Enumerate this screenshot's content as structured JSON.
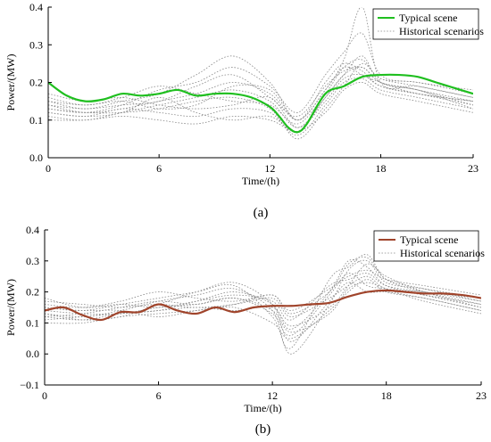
{
  "chart_data": [
    {
      "type": "line",
      "caption": "(a)",
      "xlabel": "Time/(h)",
      "ylabel": "Power/(MW)",
      "xlim": [
        0,
        23
      ],
      "ylim": [
        0,
        0.4
      ],
      "xticks": [
        0,
        6,
        12,
        18,
        23
      ],
      "yticks": [
        0.0,
        0.1,
        0.2,
        0.3,
        0.4
      ],
      "ytick_labels": [
        "0.0",
        "0.1",
        "0.2",
        "0.3",
        "0.4"
      ],
      "legend_position": "top-right",
      "typical_color": "#1fbf1f",
      "historical_color": "#8a8a8a",
      "series": [
        {
          "name": "Typical scene",
          "style": "solid",
          "x": [
            0,
            1,
            2,
            3,
            4,
            5,
            6,
            7,
            8,
            9,
            10,
            11,
            12,
            12.5,
            13,
            13.5,
            14,
            15,
            16,
            17,
            18,
            19,
            20,
            21,
            22,
            23
          ],
          "values": [
            0.2,
            0.165,
            0.15,
            0.155,
            0.17,
            0.165,
            0.17,
            0.18,
            0.165,
            0.17,
            0.17,
            0.16,
            0.135,
            0.11,
            0.08,
            0.068,
            0.09,
            0.17,
            0.19,
            0.215,
            0.22,
            0.22,
            0.215,
            0.2,
            0.185,
            0.17
          ]
        },
        {
          "name": "Historical scenarios",
          "style": "dotted",
          "x": [
            0,
            2,
            4,
            6,
            8,
            10,
            12,
            13.5,
            15,
            16,
            17,
            18,
            20,
            23
          ],
          "lines": [
            [
              0.14,
              0.12,
              0.13,
              0.15,
              0.17,
              0.2,
              0.17,
              0.1,
              0.18,
              0.26,
              0.4,
              0.2,
              0.19,
              0.16
            ],
            [
              0.13,
              0.12,
              0.14,
              0.18,
              0.2,
              0.24,
              0.19,
              0.12,
              0.22,
              0.28,
              0.33,
              0.22,
              0.2,
              0.18
            ],
            [
              0.11,
              0.1,
              0.12,
              0.14,
              0.16,
              0.18,
              0.15,
              0.08,
              0.16,
              0.22,
              0.27,
              0.2,
              0.18,
              0.14
            ],
            [
              0.15,
              0.13,
              0.15,
              0.17,
              0.22,
              0.27,
              0.2,
              0.1,
              0.2,
              0.25,
              0.23,
              0.19,
              0.17,
              0.15
            ],
            [
              0.12,
              0.11,
              0.13,
              0.12,
              0.11,
              0.13,
              0.12,
              0.06,
              0.14,
              0.2,
              0.21,
              0.18,
              0.16,
              0.13
            ],
            [
              0.16,
              0.14,
              0.16,
              0.19,
              0.17,
              0.15,
              0.14,
              0.09,
              0.17,
              0.24,
              0.26,
              0.21,
              0.2,
              0.17
            ],
            [
              0.1,
              0.1,
              0.11,
              0.1,
              0.09,
              0.11,
              0.1,
              0.07,
              0.12,
              0.18,
              0.2,
              0.17,
              0.15,
              0.12
            ],
            [
              0.14,
              0.13,
              0.14,
              0.15,
              0.19,
              0.22,
              0.16,
              0.11,
              0.19,
              0.23,
              0.24,
              0.2,
              0.18,
              0.15
            ],
            [
              0.17,
              0.15,
              0.16,
              0.14,
              0.13,
              0.14,
              0.16,
              0.08,
              0.15,
              0.21,
              0.22,
              0.19,
              0.17,
              0.14
            ],
            [
              0.13,
              0.12,
              0.12,
              0.13,
              0.15,
              0.16,
              0.13,
              0.05,
              0.13,
              0.19,
              0.25,
              0.21,
              0.19,
              0.16
            ],
            [
              0.12,
              0.11,
              0.12,
              0.16,
              0.12,
              0.1,
              0.11,
              0.07,
              0.16,
              0.22,
              0.24,
              0.2,
              0.18,
              0.13
            ],
            [
              0.15,
              0.14,
              0.15,
              0.13,
              0.14,
              0.19,
              0.18,
              0.1,
              0.18,
              0.24,
              0.22,
              0.2,
              0.17,
              0.15
            ]
          ]
        }
      ]
    },
    {
      "type": "line",
      "caption": "(b)",
      "xlabel": "Time/(h)",
      "ylabel": "Power/(MW)",
      "xlim": [
        0,
        23
      ],
      "ylim": [
        -0.1,
        0.4
      ],
      "xticks": [
        0,
        6,
        12,
        18,
        23
      ],
      "yticks": [
        -0.1,
        0.0,
        0.1,
        0.2,
        0.3,
        0.4
      ],
      "ytick_labels": [
        "−0.1",
        "0.0",
        "0.1",
        "0.2",
        "0.3",
        "0.4"
      ],
      "legend_position": "top-right",
      "typical_color": "#a0442b",
      "historical_color": "#8a8a8a",
      "series": [
        {
          "name": "Typical scene",
          "style": "solid",
          "x": [
            0,
            1,
            2,
            3,
            4,
            5,
            6,
            7,
            8,
            9,
            10,
            11,
            12,
            13,
            14,
            15,
            16,
            17,
            18,
            19,
            20,
            21,
            22,
            23
          ],
          "values": [
            0.14,
            0.15,
            0.125,
            0.11,
            0.135,
            0.135,
            0.16,
            0.14,
            0.13,
            0.15,
            0.135,
            0.15,
            0.155,
            0.155,
            0.16,
            0.165,
            0.185,
            0.2,
            0.205,
            0.2,
            0.195,
            0.195,
            0.19,
            0.18
          ]
        },
        {
          "name": "Historical scenarios",
          "style": "dotted",
          "x": [
            0,
            2,
            4,
            6,
            8,
            10,
            12,
            13,
            15,
            16,
            17,
            18,
            20,
            23
          ],
          "lines": [
            [
              0.15,
              0.14,
              0.16,
              0.18,
              0.2,
              0.22,
              0.12,
              0.02,
              0.24,
              0.28,
              0.32,
              0.24,
              0.2,
              0.16
            ],
            [
              0.12,
              0.11,
              0.13,
              0.14,
              0.17,
              0.2,
              0.16,
              0.08,
              0.2,
              0.3,
              0.28,
              0.22,
              0.19,
              0.15
            ],
            [
              0.17,
              0.16,
              0.15,
              0.16,
              0.15,
              0.16,
              0.18,
              0.12,
              0.18,
              0.22,
              0.25,
              0.21,
              0.2,
              0.17
            ],
            [
              0.13,
              0.12,
              0.14,
              0.17,
              0.19,
              0.21,
              0.14,
              0.0,
              0.16,
              0.27,
              0.3,
              0.23,
              0.21,
              0.18
            ],
            [
              0.1,
              0.1,
              0.12,
              0.13,
              0.14,
              0.15,
              0.1,
              0.05,
              0.14,
              0.2,
              0.24,
              0.2,
              0.18,
              0.14
            ],
            [
              0.16,
              0.15,
              0.17,
              0.2,
              0.18,
              0.17,
              0.19,
              0.14,
              0.21,
              0.25,
              0.27,
              0.24,
              0.22,
              0.19
            ],
            [
              0.14,
              0.13,
              0.13,
              0.15,
              0.16,
              0.18,
              0.13,
              0.06,
              0.19,
              0.26,
              0.22,
              0.21,
              0.19,
              0.16
            ],
            [
              0.11,
              0.12,
              0.13,
              0.14,
              0.15,
              0.14,
              0.15,
              0.09,
              0.15,
              0.22,
              0.29,
              0.25,
              0.2,
              0.15
            ],
            [
              0.18,
              0.15,
              0.16,
              0.15,
              0.17,
              0.19,
              0.17,
              0.11,
              0.22,
              0.24,
              0.26,
              0.22,
              0.2,
              0.18
            ],
            [
              0.13,
              0.11,
              0.12,
              0.16,
              0.2,
              0.23,
              0.16,
              0.04,
              0.17,
              0.23,
              0.2,
              0.2,
              0.18,
              0.14
            ],
            [
              0.12,
              0.13,
              0.15,
              0.17,
              0.16,
              0.18,
              0.14,
              0.07,
              0.13,
              0.21,
              0.23,
              0.21,
              0.17,
              0.13
            ],
            [
              0.15,
              0.14,
              0.14,
              0.12,
              0.14,
              0.16,
              0.19,
              0.13,
              0.2,
              0.29,
              0.31,
              0.24,
              0.21,
              0.17
            ]
          ]
        }
      ]
    }
  ]
}
